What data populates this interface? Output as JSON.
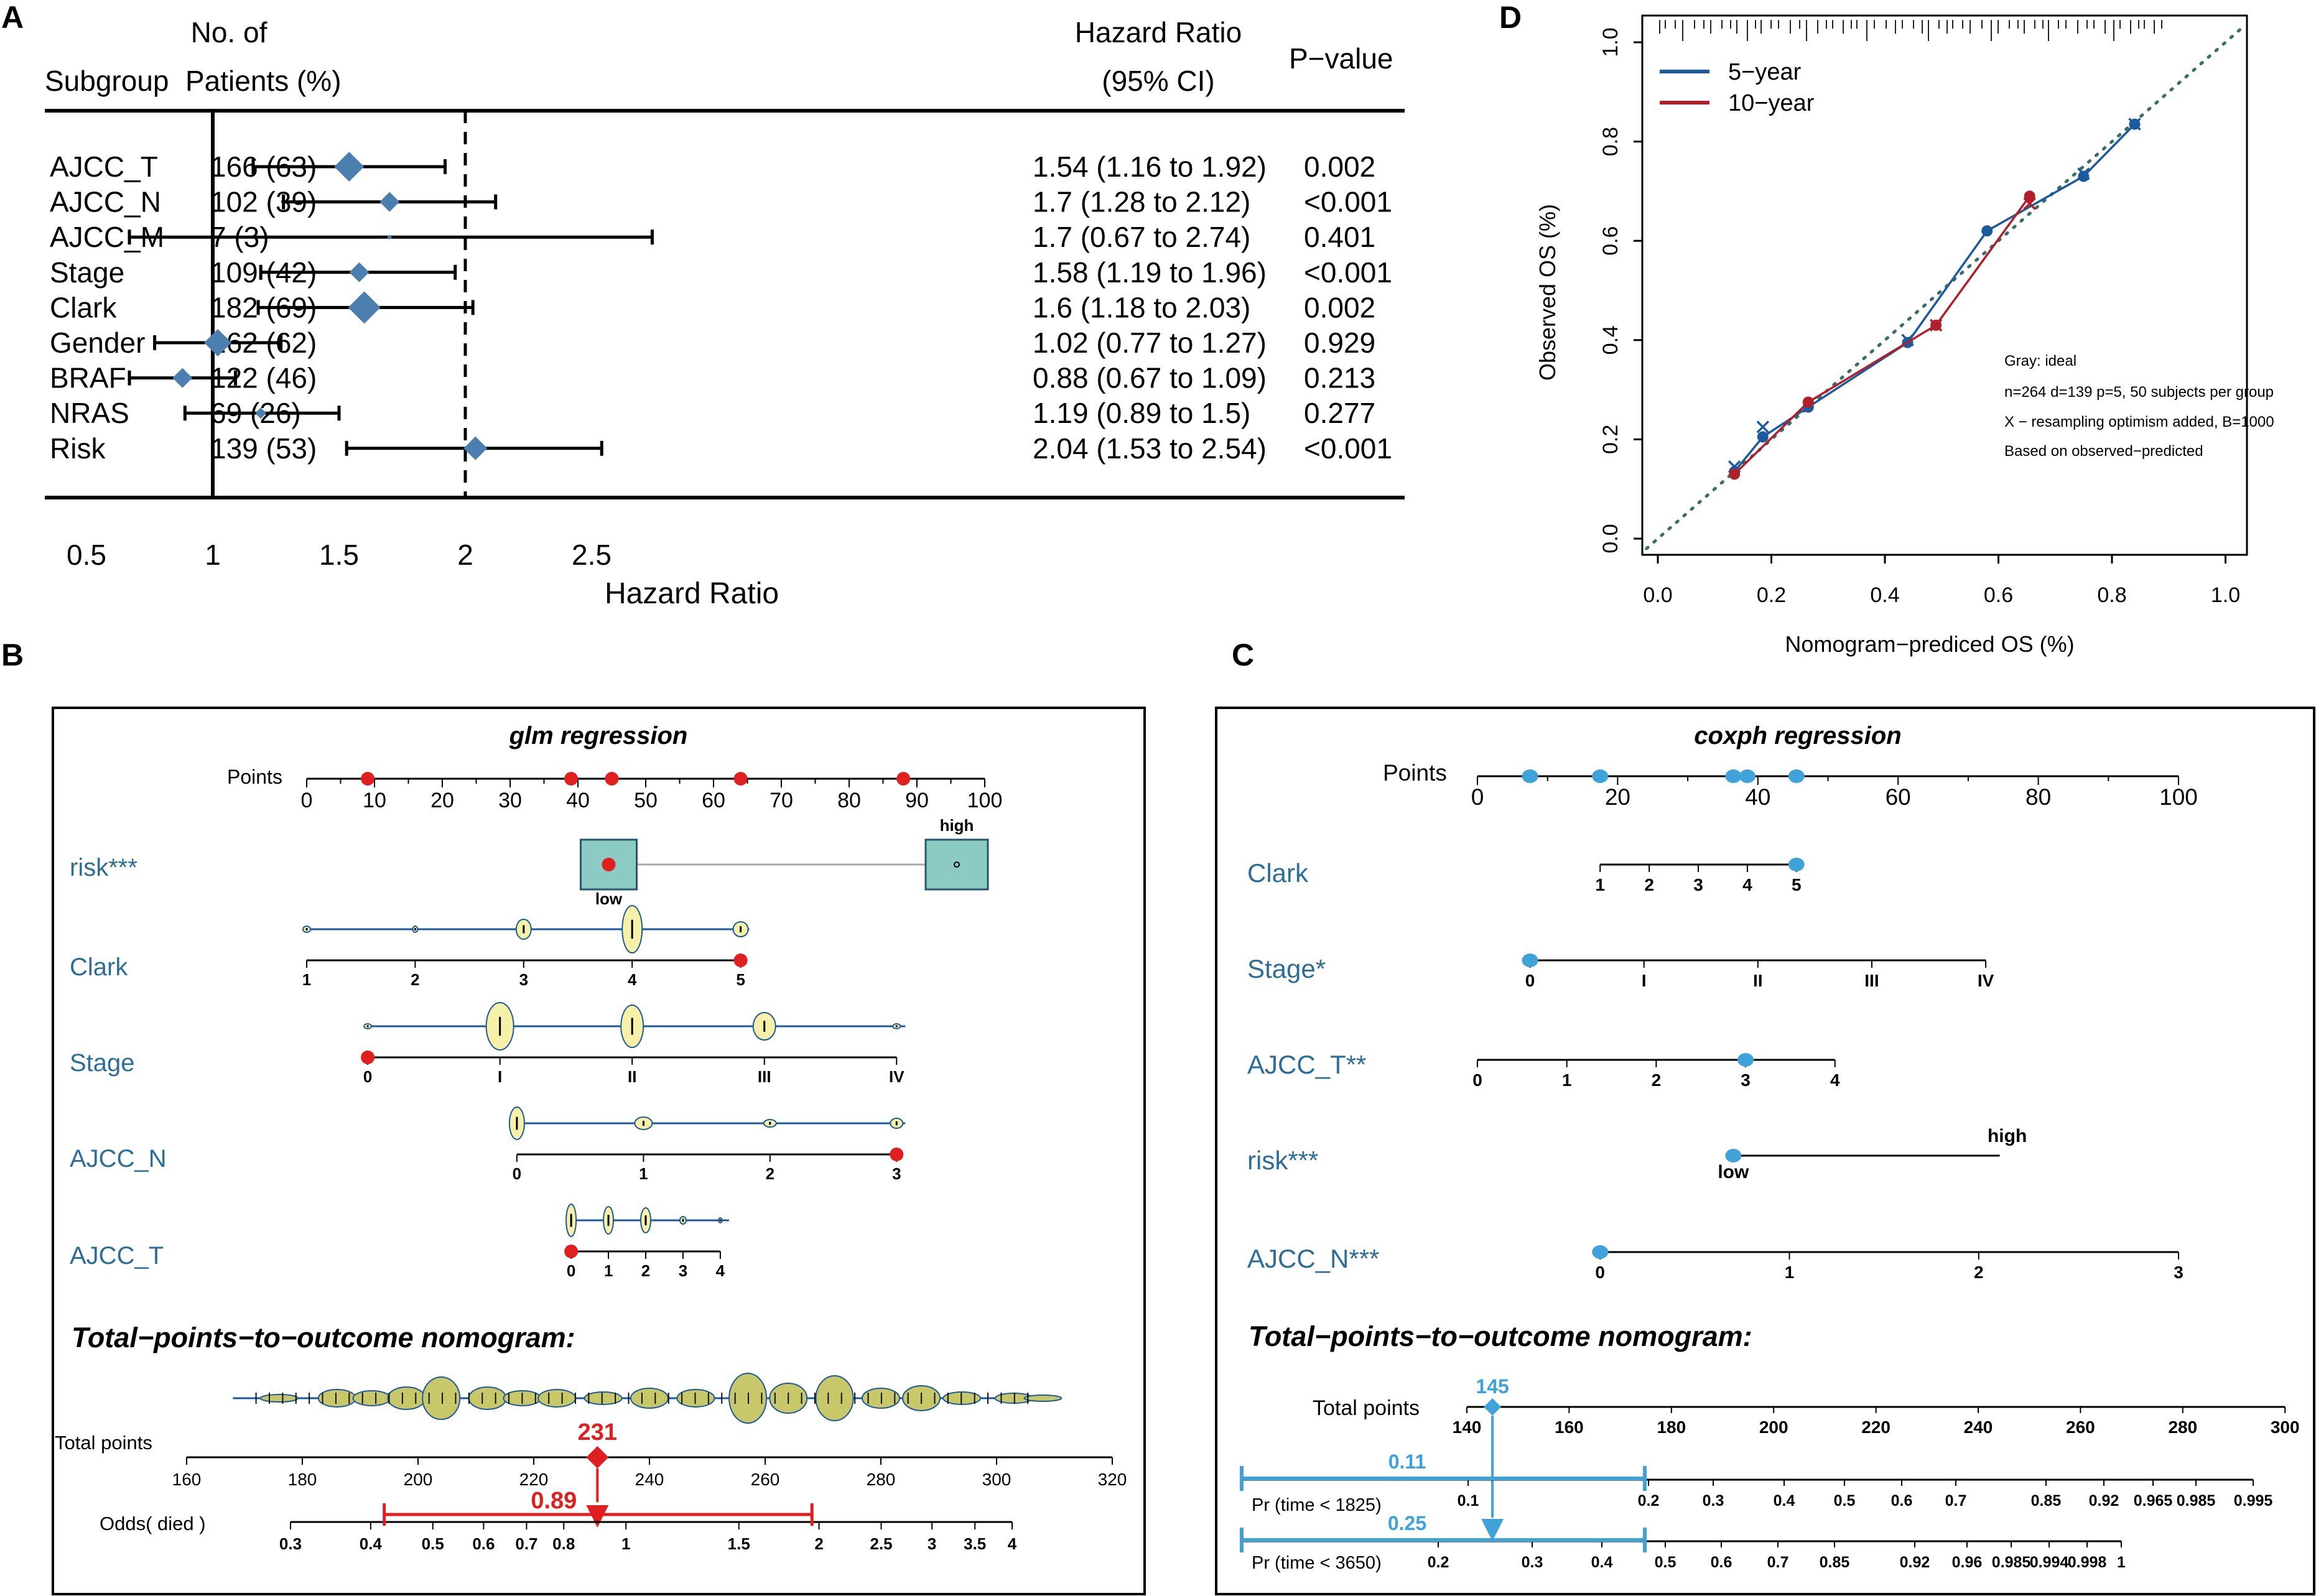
{
  "colors": {
    "steel": "#4a7fb0",
    "blueText": "#2e6e96",
    "red": "#e02020",
    "lightBlue": "#3fa2d8",
    "line5": "#1c5a9c",
    "line10": "#b0202c",
    "violin": "#c8c86a",
    "violinLight": "#f6f0a8",
    "box": "#8ccbc4"
  },
  "panel_labels": {
    "a": "A",
    "b": "B",
    "c": "C",
    "d": "D"
  },
  "forest": {
    "header": {
      "subgroup": "Subgroup",
      "patients_1": "No. of",
      "patients_2": "Patients (%)",
      "hr_1": "Hazard Ratio",
      "hr_2": "(95% CI)",
      "pvalue": "P−value"
    },
    "xlabel": "Hazard Ratio"
  },
  "glm": {
    "title": "glm regression",
    "points_label": "Points",
    "variables": {
      "risk": "risk***",
      "clark": "Clark",
      "stage": "Stage",
      "ajcc_n": "AJCC_N",
      "ajcc_t": "AJCC_T"
    },
    "risk_high": "high",
    "risk_low": "low",
    "total_header": "Total−points−to−outcome nomogram:",
    "total_points_label": "Total points",
    "odds_label": "Odds( died )",
    "marked_total": "231",
    "marked_odds": "0.89"
  },
  "cox": {
    "title": "coxph regression",
    "points_label": "Points",
    "variables": {
      "clark": "Clark",
      "stage": "Stage*",
      "ajcc_t": "AJCC_T**",
      "risk": "risk***",
      "ajcc_n": "AJCC_N***"
    },
    "risk_high": "high",
    "risk_low": "low",
    "total_header": "Total−points−to−outcome nomogram:",
    "total_points_label": "Total points",
    "pr1825_label": "Pr (time < 1825)",
    "pr3650_label": "Pr (time < 3650)",
    "marked_total": "145",
    "marked_pr1825": "0.11",
    "marked_pr3650": "0.25"
  },
  "calibration_text": {
    "legend": [
      "5−year",
      "10−year"
    ],
    "note_1": "Gray: ideal",
    "note_2": "n=264 d=139 p=5, 50 subjects per group",
    "note_3": "X − resampling optimism added, B=1000",
    "note_4": "Based on observed−predicted"
  },
  "chart_data": [
    {
      "type": "forest",
      "title": "",
      "xlabel": "Hazard Ratio",
      "xlim": [
        0.0,
        3.0
      ],
      "xticks": [
        "0.5",
        "1",
        "1.5",
        "2",
        "2.5"
      ],
      "reference_lines": [
        1,
        2
      ],
      "rows": [
        {
          "name": "AJCC_T",
          "patients": "166 (63)",
          "hr": 1.54,
          "lo": 1.16,
          "hi": 1.92,
          "hr_text": "1.54 (1.16 to 1.92)",
          "p": "0.002"
        },
        {
          "name": "AJCC_N",
          "patients": "102 (39)",
          "hr": 1.7,
          "lo": 1.28,
          "hi": 2.12,
          "hr_text": "1.7 (1.28 to 2.12)",
          "p": "<0.001"
        },
        {
          "name": "AJCC_M",
          "patients": "7 (3)",
          "hr": 1.7,
          "lo": 0.67,
          "hi": 2.74,
          "hr_text": "1.7 (0.67 to 2.74)",
          "p": "0.401"
        },
        {
          "name": "Stage",
          "patients": "109 (42)",
          "hr": 1.58,
          "lo": 1.19,
          "hi": 1.96,
          "hr_text": "1.58 (1.19 to 1.96)",
          "p": "<0.001"
        },
        {
          "name": "Clark",
          "patients": "182 (69)",
          "hr": 1.6,
          "lo": 1.18,
          "hi": 2.03,
          "hr_text": "1.6 (1.18 to 2.03)",
          "p": "0.002"
        },
        {
          "name": "Gender",
          "patients": "162 (62)",
          "hr": 1.02,
          "lo": 0.77,
          "hi": 1.27,
          "hr_text": "1.02 (0.77 to 1.27)",
          "p": "0.929"
        },
        {
          "name": "BRAF",
          "patients": "122 (46)",
          "hr": 0.88,
          "lo": 0.67,
          "hi": 1.09,
          "hr_text": "0.88 (0.67 to 1.09)",
          "p": "0.213"
        },
        {
          "name": "NRAS",
          "patients": "69 (26)",
          "hr": 1.19,
          "lo": 0.89,
          "hi": 1.5,
          "hr_text": "1.19 (0.89 to 1.5)",
          "p": "0.277"
        },
        {
          "name": "Risk",
          "patients": "139 (53)",
          "hr": 2.04,
          "lo": 1.53,
          "hi": 2.54,
          "hr_text": "2.04 (1.53 to 2.54)",
          "p": "<0.001"
        }
      ]
    },
    {
      "type": "nomogram",
      "title": "glm regression",
      "points_axis": {
        "range": [
          0,
          100
        ],
        "ticks": [
          0,
          10,
          20,
          30,
          40,
          50,
          60,
          70,
          80,
          90,
          100
        ],
        "marked": [
          9,
          39,
          45,
          64,
          88
        ]
      },
      "variables": [
        {
          "name": "risk***",
          "levels": [
            "low",
            "high"
          ],
          "points": [
            45,
            100
          ],
          "selected": "low"
        },
        {
          "name": "Clark",
          "levels": [
            "1",
            "2",
            "3",
            "4",
            "5"
          ],
          "points": [
            0,
            16,
            32,
            48,
            64
          ],
          "selected": "5"
        },
        {
          "name": "Stage",
          "levels": [
            "0",
            "I",
            "II",
            "III",
            "IV"
          ],
          "points": [
            9,
            28.5,
            48,
            67.5,
            87
          ],
          "selected": "0"
        },
        {
          "name": "AJCC_N",
          "levels": [
            "0",
            "1",
            "2",
            "3"
          ],
          "points": [
            31,
            49.67,
            68.33,
            87
          ],
          "selected": "3"
        },
        {
          "name": "AJCC_T",
          "levels": [
            "0",
            "1",
            "2",
            "3",
            "4"
          ],
          "points": [
            39,
            44.5,
            50,
            55.5,
            61
          ],
          "selected": "0"
        }
      ],
      "total_points": {
        "range": [
          160,
          320
        ],
        "ticks": [
          160,
          180,
          200,
          220,
          240,
          260,
          280,
          300,
          320
        ],
        "selected": 231
      },
      "outcome": {
        "label": "Odds( died )",
        "ticks": [
          "0.3",
          "0.4",
          "0.5",
          "0.6",
          "0.7",
          "0.8",
          "1",
          "1.5",
          "2",
          "2.5",
          "3",
          "3.5",
          "4"
        ],
        "selected": 0.89,
        "ci": [
          0.42,
          1.95
        ]
      }
    },
    {
      "type": "nomogram",
      "title": "coxph regression",
      "points_axis": {
        "range": [
          0,
          100
        ],
        "ticks": [
          0,
          20,
          40,
          60,
          80,
          100
        ],
        "marked": [
          7.5,
          17.5,
          36.5,
          38.5,
          45.5
        ]
      },
      "variables": [
        {
          "name": "Clark",
          "levels": [
            "1",
            "2",
            "3",
            "4",
            "5"
          ],
          "points": [
            17.5,
            24.5,
            31.5,
            38.5,
            45.5
          ],
          "selected": "5"
        },
        {
          "name": "Stage*",
          "levels": [
            "0",
            "I",
            "II",
            "III",
            "IV"
          ],
          "points": [
            7.5,
            23.75,
            40,
            56.25,
            72.5
          ],
          "selected": "0"
        },
        {
          "name": "AJCC_T**",
          "levels": [
            "0",
            "1",
            "2",
            "3",
            "4"
          ],
          "points": [
            0,
            12.75,
            25.5,
            38.25,
            51
          ],
          "selected": "3"
        },
        {
          "name": "risk***",
          "levels": [
            "low",
            "high"
          ],
          "points": [
            36.5,
            74.5
          ],
          "selected": "low"
        },
        {
          "name": "AJCC_N***",
          "levels": [
            "0",
            "1",
            "2",
            "3"
          ],
          "points": [
            17.5,
            44.5,
            71.5,
            100
          ],
          "selected": "0"
        }
      ],
      "total_points": {
        "range": [
          140,
          300
        ],
        "ticks": [
          140,
          160,
          180,
          200,
          220,
          240,
          260,
          280,
          300
        ],
        "selected": 145
      },
      "outcomes": [
        {
          "label": "Pr (time < 1825)",
          "ticks": [
            "0.1",
            "0.2",
            "0.3",
            "0.4",
            "0.5",
            "0.6",
            "0.7",
            "0.85",
            "0.92",
            "0.965",
            "0.985",
            "0.995"
          ],
          "selected": 0.11
        },
        {
          "label": "Pr (time < 3650)",
          "ticks": [
            "0.2",
            "0.3",
            "0.4",
            "0.5",
            "0.6",
            "0.7",
            "0.85",
            "0.92",
            "0.96",
            "0.985",
            "0.994",
            "0.998",
            "1"
          ],
          "selected": 0.25
        }
      ]
    },
    {
      "type": "line",
      "title": "",
      "xlabel": "Nomogram−prediced OS (%)",
      "ylabel": "Observed OS (%)",
      "xlim": [
        0.0,
        1.0
      ],
      "ylim": [
        0.0,
        1.0
      ],
      "xticks": [
        "0.0",
        "0.2",
        "0.4",
        "0.6",
        "0.8",
        "1.0"
      ],
      "yticks": [
        "0.0",
        "0.2",
        "0.4",
        "0.6",
        "0.8",
        "1.0"
      ],
      "series": [
        {
          "name": "5−year",
          "x": [
            0.135,
            0.185,
            0.265,
            0.44,
            0.58,
            0.75,
            0.84
          ],
          "y": [
            0.135,
            0.205,
            0.265,
            0.395,
            0.62,
            0.73,
            0.835
          ],
          "x_marks": [
            [
              0.135,
              0.145
            ],
            [
              0.185,
              0.225
            ],
            [
              0.44,
              0.4
            ],
            [
              0.75,
              0.735
            ],
            [
              0.84,
              0.835
            ]
          ]
        },
        {
          "name": "10−year",
          "x": [
            0.135,
            0.265,
            0.49,
            0.655
          ],
          "y": [
            0.13,
            0.275,
            0.43,
            0.69
          ],
          "x_marks": [
            [
              0.49,
              0.43
            ],
            [
              0.655,
              0.675
            ]
          ]
        }
      ],
      "ideal_line": [
        [
          -0.02,
          -0.02
        ],
        [
          1.03,
          1.03
        ]
      ]
    }
  ]
}
